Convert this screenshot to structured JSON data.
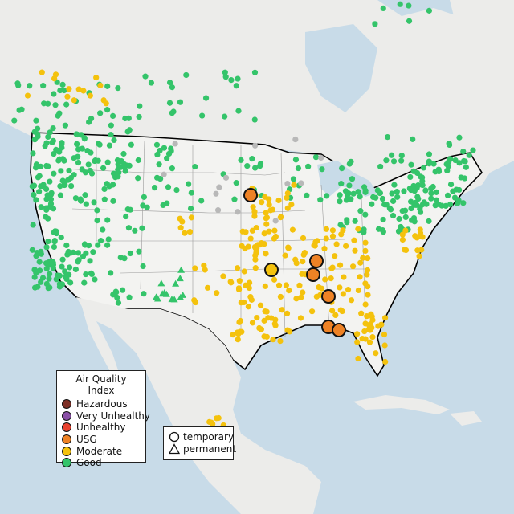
{
  "legend": {
    "title": "Air Quality Index",
    "items": [
      {
        "label": "Hazardous",
        "color": "#7e2f26"
      },
      {
        "label": "Very Unhealthy",
        "color": "#8a4fa6"
      },
      {
        "label": "Unhealthy",
        "color": "#e8412e"
      },
      {
        "label": "USG",
        "color": "#ee8225"
      },
      {
        "label": "Moderate",
        "color": "#f4c20d"
      },
      {
        "label": "Good",
        "color": "#34c46a"
      }
    ]
  },
  "type_legend": {
    "items": [
      {
        "label": "temporary",
        "shape": "circle"
      },
      {
        "label": "permanent",
        "shape": "triangle"
      }
    ]
  },
  "colors": {
    "ocean": "#c8dbe8",
    "land": "#efefed",
    "us_land": "#f4f4f2",
    "border": "#000000",
    "state_lines": "#9a9a9a",
    "grey_marker": "#b8b8b8"
  }
}
